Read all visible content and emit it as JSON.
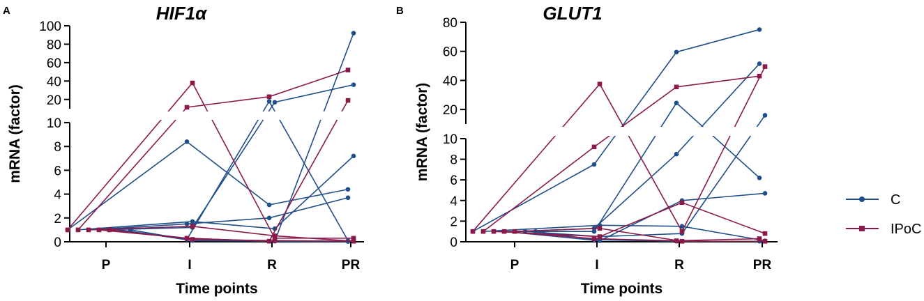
{
  "colors": {
    "C": "#1f4e89",
    "IPoC": "#8b1a4a"
  },
  "legend": [
    {
      "label": "C",
      "series": "C"
    },
    {
      "label": "IPoC",
      "series": "IPoC"
    }
  ],
  "chart_data": [
    {
      "panel": "A",
      "type": "line",
      "title": "HIF1α",
      "xlabel": "Time points",
      "ylabel": "mRNA (factor)",
      "categories": [
        "P",
        "I",
        "R",
        "PR"
      ],
      "y_break": {
        "lower": [
          0,
          10
        ],
        "upper": [
          10,
          100
        ]
      },
      "lower_ticks": [
        0,
        2,
        4,
        6,
        8,
        10
      ],
      "upper_ticks": [
        20,
        40,
        60,
        80,
        100
      ],
      "series": [
        {
          "group": "C",
          "values": [
            1.0,
            8.4,
            3.1,
            4.4
          ]
        },
        {
          "group": "C",
          "values": [
            1.0,
            1.7,
            1.1,
            7.2
          ]
        },
        {
          "group": "C",
          "values": [
            1.0,
            1.5,
            2.0,
            3.7
          ]
        },
        {
          "group": "C",
          "values": [
            1.0,
            1.2,
            17,
            36
          ]
        },
        {
          "group": "C",
          "values": [
            1.0,
            0.3,
            0.05,
            0.02
          ]
        },
        {
          "group": "C",
          "values": [
            1.0,
            0.1,
            0.05,
            92
          ]
        },
        {
          "group": "C",
          "values": [
            1.0,
            0.2,
            18,
            0.1
          ]
        },
        {
          "group": "IPoC",
          "values": [
            1.0,
            38,
            0.3,
            0.3
          ]
        },
        {
          "group": "IPoC",
          "values": [
            1.0,
            11.5,
            23,
            52
          ]
        },
        {
          "group": "IPoC",
          "values": [
            1.0,
            1.3,
            0.5,
            0.05
          ]
        },
        {
          "group": "IPoC",
          "values": [
            1.0,
            0.3,
            0.05,
            19
          ]
        },
        {
          "group": "IPoC",
          "values": [
            1.0,
            0.2,
            0.1,
            0.05
          ]
        }
      ]
    },
    {
      "panel": "B",
      "type": "line",
      "title": "GLUT1",
      "xlabel": "Time points",
      "ylabel": "mRNA (factor)",
      "categories": [
        "P",
        "I",
        "R",
        "PR"
      ],
      "y_break": {
        "lower": [
          0,
          10
        ],
        "upper": [
          10,
          80
        ]
      },
      "lower_ticks": [
        0,
        2,
        4,
        6,
        8,
        10
      ],
      "upper_ticks": [
        20,
        40,
        60,
        80
      ],
      "series": [
        {
          "group": "C",
          "values": [
            1.0,
            7.5,
            59.5,
            75
          ]
        },
        {
          "group": "C",
          "values": [
            1.0,
            1.6,
            1.5,
            0.1
          ]
        },
        {
          "group": "C",
          "values": [
            1.0,
            1.0,
            24.5,
            6.2
          ]
        },
        {
          "group": "C",
          "values": [
            1.0,
            0.1,
            4.0,
            4.7
          ]
        },
        {
          "group": "C",
          "values": [
            1.0,
            1.3,
            8.5,
            51.5
          ]
        },
        {
          "group": "C",
          "values": [
            1.0,
            0.5,
            0.8,
            16
          ]
        },
        {
          "group": "C",
          "values": [
            1.0,
            0.2,
            0.05,
            0.05
          ]
        },
        {
          "group": "IPoC",
          "values": [
            1.0,
            37.5,
            1.0,
            49.5
          ]
        },
        {
          "group": "IPoC",
          "values": [
            1.0,
            9.2,
            35.5,
            43
          ]
        },
        {
          "group": "IPoC",
          "values": [
            1.0,
            0.5,
            3.8,
            0.8
          ]
        },
        {
          "group": "IPoC",
          "values": [
            1.0,
            0.3,
            0.1,
            0.3
          ]
        },
        {
          "group": "IPoC",
          "values": [
            1.0,
            1.3,
            0.05,
            0.05
          ]
        }
      ]
    }
  ]
}
